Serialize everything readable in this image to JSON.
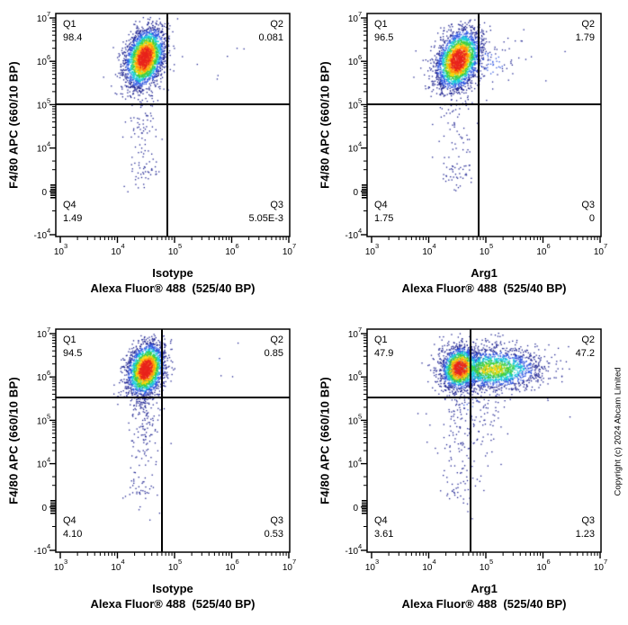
{
  "copyright": "Copyright (c) 2024 Abcam Limited",
  "density_colormap": [
    {
      "t": 0.8,
      "c": "#e8231c"
    },
    {
      "t": 0.62,
      "c": "#ff8c0e"
    },
    {
      "t": 0.47,
      "c": "#ffd60a"
    },
    {
      "t": 0.3,
      "c": "#3ecf3e"
    },
    {
      "t": 0.17,
      "c": "#17ccd9"
    },
    {
      "t": 0.07,
      "c": "#2a52e0"
    },
    {
      "t": 0.0,
      "c": "#1a1f8f"
    }
  ],
  "chart_data": [
    {
      "id": "isotype-top",
      "type": "scatter",
      "x_label_line1": "Isotype",
      "x_label_line2": "Alexa Fluor® 488  (525/40 BP)",
      "y_label": "F4/80 APC (660/10 BP)",
      "x_range_log10": [
        2.93,
        7.07
      ],
      "x_ticks": [
        {
          "v": 3,
          "m": "10",
          "e": "3"
        },
        {
          "v": 4,
          "m": "10",
          "e": "4"
        },
        {
          "v": 5,
          "m": "10",
          "e": "5"
        },
        {
          "v": 6,
          "m": "10",
          "e": "6"
        },
        {
          "v": 7,
          "m": "10",
          "e": "7"
        }
      ],
      "y_ticks": [
        {
          "u": 7,
          "m": "10",
          "e": "7"
        },
        {
          "u": 6,
          "m": "10",
          "e": "6"
        },
        {
          "u": 5,
          "m": "10",
          "e": "5"
        },
        {
          "u": 4,
          "m": "10",
          "e": "4"
        },
        {
          "u": 3,
          "m": "0",
          "e": ""
        },
        {
          "u": 2,
          "m": "-10",
          "e": "4"
        }
      ],
      "gate_x_log10": 4.87,
      "gate_y_u": 5.0,
      "quadrants": [
        {
          "name": "Q1",
          "value": "98.4"
        },
        {
          "name": "Q2",
          "value": "0.081"
        },
        {
          "name": "Q3",
          "value": "5.05E-3"
        },
        {
          "name": "Q4",
          "value": "1.49"
        }
      ],
      "seed": 7,
      "clusters": [
        {
          "cx": 4.48,
          "cy": 6.08,
          "sx": 0.17,
          "sy": 0.34,
          "rho": 0.3,
          "n": 2800,
          "peak": 1
        },
        {
          "cx": 4.45,
          "cy": 4.7,
          "sx": 0.13,
          "sy": 0.65,
          "rho": 0,
          "n": 90,
          "peak": 0.05
        },
        {
          "cx": 4.45,
          "cy": 3.45,
          "sx": 0.16,
          "sy": 0.22,
          "rho": 0,
          "n": 40,
          "peak": 0.05
        },
        {
          "cx": 5.8,
          "cy": 5.9,
          "sx": 0.6,
          "sy": 0.55,
          "rho": 0,
          "n": 7,
          "peak": 0.02
        }
      ]
    },
    {
      "id": "arg1-top",
      "type": "scatter",
      "x_label_line1": "Arg1",
      "x_label_line2": "Alexa Fluor® 488  (525/40 BP)",
      "y_label": "F4/80 APC (660/10 BP)",
      "x_range_log10": [
        2.93,
        7.07
      ],
      "x_ticks": [
        {
          "v": 3,
          "m": "10",
          "e": "3"
        },
        {
          "v": 4,
          "m": "10",
          "e": "4"
        },
        {
          "v": 5,
          "m": "10",
          "e": "5"
        },
        {
          "v": 6,
          "m": "10",
          "e": "6"
        },
        {
          "v": 7,
          "m": "10",
          "e": "7"
        }
      ],
      "y_ticks": [
        {
          "u": 7,
          "m": "10",
          "e": "7"
        },
        {
          "u": 6,
          "m": "10",
          "e": "6"
        },
        {
          "u": 5,
          "m": "10",
          "e": "5"
        },
        {
          "u": 4,
          "m": "10",
          "e": "4"
        },
        {
          "u": 3,
          "m": "0",
          "e": ""
        },
        {
          "u": 2,
          "m": "-10",
          "e": "4"
        }
      ],
      "gate_x_log10": 4.87,
      "gate_y_u": 5.0,
      "quadrants": [
        {
          "name": "Q1",
          "value": "96.5"
        },
        {
          "name": "Q2",
          "value": "1.79"
        },
        {
          "name": "Q3",
          "value": "0"
        },
        {
          "name": "Q4",
          "value": "1.75"
        }
      ],
      "seed": 13,
      "clusters": [
        {
          "cx": 4.52,
          "cy": 6.03,
          "sx": 0.19,
          "sy": 0.34,
          "rho": 0.3,
          "n": 2800,
          "peak": 1
        },
        {
          "cx": 5.0,
          "cy": 5.95,
          "sx": 0.3,
          "sy": 0.33,
          "rho": 0.2,
          "n": 90,
          "peak": 0.13
        },
        {
          "cx": 4.48,
          "cy": 4.7,
          "sx": 0.14,
          "sy": 0.65,
          "rho": 0,
          "n": 80,
          "peak": 0.05
        },
        {
          "cx": 4.48,
          "cy": 3.45,
          "sx": 0.16,
          "sy": 0.22,
          "rho": 0,
          "n": 40,
          "peak": 0.05
        },
        {
          "cx": 6.1,
          "cy": 6.1,
          "sx": 0.45,
          "sy": 0.4,
          "rho": 0,
          "n": 6,
          "peak": 0.02
        }
      ]
    },
    {
      "id": "isotype-bottom",
      "type": "scatter",
      "x_label_line1": "Isotype",
      "x_label_line2": "Alexa Fluor® 488  (525/40 BP)",
      "y_label": "F4/80 APC (660/10 BP)",
      "x_range_log10": [
        2.93,
        7.07
      ],
      "x_ticks": [
        {
          "v": 3,
          "m": "10",
          "e": "3"
        },
        {
          "v": 4,
          "m": "10",
          "e": "4"
        },
        {
          "v": 5,
          "m": "10",
          "e": "5"
        },
        {
          "v": 6,
          "m": "10",
          "e": "6"
        },
        {
          "v": 7,
          "m": "10",
          "e": "7"
        }
      ],
      "y_ticks": [
        {
          "u": 7,
          "m": "10",
          "e": "7"
        },
        {
          "u": 6,
          "m": "10",
          "e": "6"
        },
        {
          "u": 5,
          "m": "10",
          "e": "5"
        },
        {
          "u": 4,
          "m": "10",
          "e": "4"
        },
        {
          "u": 3,
          "m": "0",
          "e": ""
        },
        {
          "u": 2,
          "m": "-10",
          "e": "4"
        }
      ],
      "gate_x_log10": 4.78,
      "gate_y_u": 5.52,
      "quadrants": [
        {
          "name": "Q1",
          "value": "94.5"
        },
        {
          "name": "Q2",
          "value": "0.85"
        },
        {
          "name": "Q3",
          "value": "0.53"
        },
        {
          "name": "Q4",
          "value": "4.10"
        }
      ],
      "seed": 23,
      "clusters": [
        {
          "cx": 4.5,
          "cy": 6.17,
          "sx": 0.16,
          "sy": 0.3,
          "rho": 0.25,
          "n": 2500,
          "peak": 1
        },
        {
          "cx": 4.5,
          "cy": 5.0,
          "sx": 0.14,
          "sy": 0.75,
          "rho": 0,
          "n": 170,
          "peak": 0.05
        },
        {
          "cx": 4.4,
          "cy": 3.45,
          "sx": 0.13,
          "sy": 0.2,
          "rho": 0,
          "n": 35,
          "peak": 0.05
        },
        {
          "cx": 5.7,
          "cy": 6.2,
          "sx": 0.5,
          "sy": 0.4,
          "rho": 0,
          "n": 4,
          "peak": 0.02
        }
      ]
    },
    {
      "id": "arg1-bottom",
      "type": "scatter",
      "x_label_line1": "Arg1",
      "x_label_line2": "Alexa Fluor® 488  (525/40 BP)",
      "y_label": "F4/80 APC (660/10 BP)",
      "x_range_log10": [
        2.93,
        7.07
      ],
      "x_ticks": [
        {
          "v": 3,
          "m": "10",
          "e": "3"
        },
        {
          "v": 4,
          "m": "10",
          "e": "4"
        },
        {
          "v": 5,
          "m": "10",
          "e": "5"
        },
        {
          "v": 6,
          "m": "10",
          "e": "6"
        },
        {
          "v": 7,
          "m": "10",
          "e": "7"
        }
      ],
      "y_ticks": [
        {
          "u": 7,
          "m": "10",
          "e": "7"
        },
        {
          "u": 6,
          "m": "10",
          "e": "6"
        },
        {
          "u": 5,
          "m": "10",
          "e": "5"
        },
        {
          "u": 4,
          "m": "10",
          "e": "4"
        },
        {
          "u": 3,
          "m": "0",
          "e": ""
        },
        {
          "u": 2,
          "m": "-10",
          "e": "4"
        }
      ],
      "gate_x_log10": 4.74,
      "gate_y_u": 5.52,
      "quadrants": [
        {
          "name": "Q1",
          "value": "47.9"
        },
        {
          "name": "Q2",
          "value": "47.2"
        },
        {
          "name": "Q3",
          "value": "1.23"
        },
        {
          "name": "Q4",
          "value": "3.61"
        }
      ],
      "seed": 31,
      "clusters": [
        {
          "cx": 4.55,
          "cy": 6.2,
          "sx": 0.16,
          "sy": 0.24,
          "rho": 0.1,
          "n": 1600,
          "peak": 1
        },
        {
          "cx": 5.12,
          "cy": 6.18,
          "sx": 0.42,
          "sy": 0.23,
          "rho": 0,
          "n": 1900,
          "peak": 0.5
        },
        {
          "cx": 4.95,
          "cy": 6.55,
          "sx": 0.5,
          "sy": 0.3,
          "rho": 0,
          "n": 60,
          "peak": 0.05
        },
        {
          "cx": 4.75,
          "cy": 5.3,
          "sx": 0.3,
          "sy": 0.5,
          "rho": 0,
          "n": 170,
          "peak": 0.07
        },
        {
          "cx": 4.62,
          "cy": 4.1,
          "sx": 0.2,
          "sy": 0.6,
          "rho": 0,
          "n": 60,
          "peak": 0.04
        },
        {
          "cx": 4.5,
          "cy": 3.4,
          "sx": 0.18,
          "sy": 0.22,
          "rho": 0,
          "n": 30,
          "peak": 0.05
        },
        {
          "cx": 6.3,
          "cy": 6.0,
          "sx": 0.35,
          "sy": 0.5,
          "rho": 0,
          "n": 8,
          "peak": 0.02
        }
      ]
    }
  ]
}
